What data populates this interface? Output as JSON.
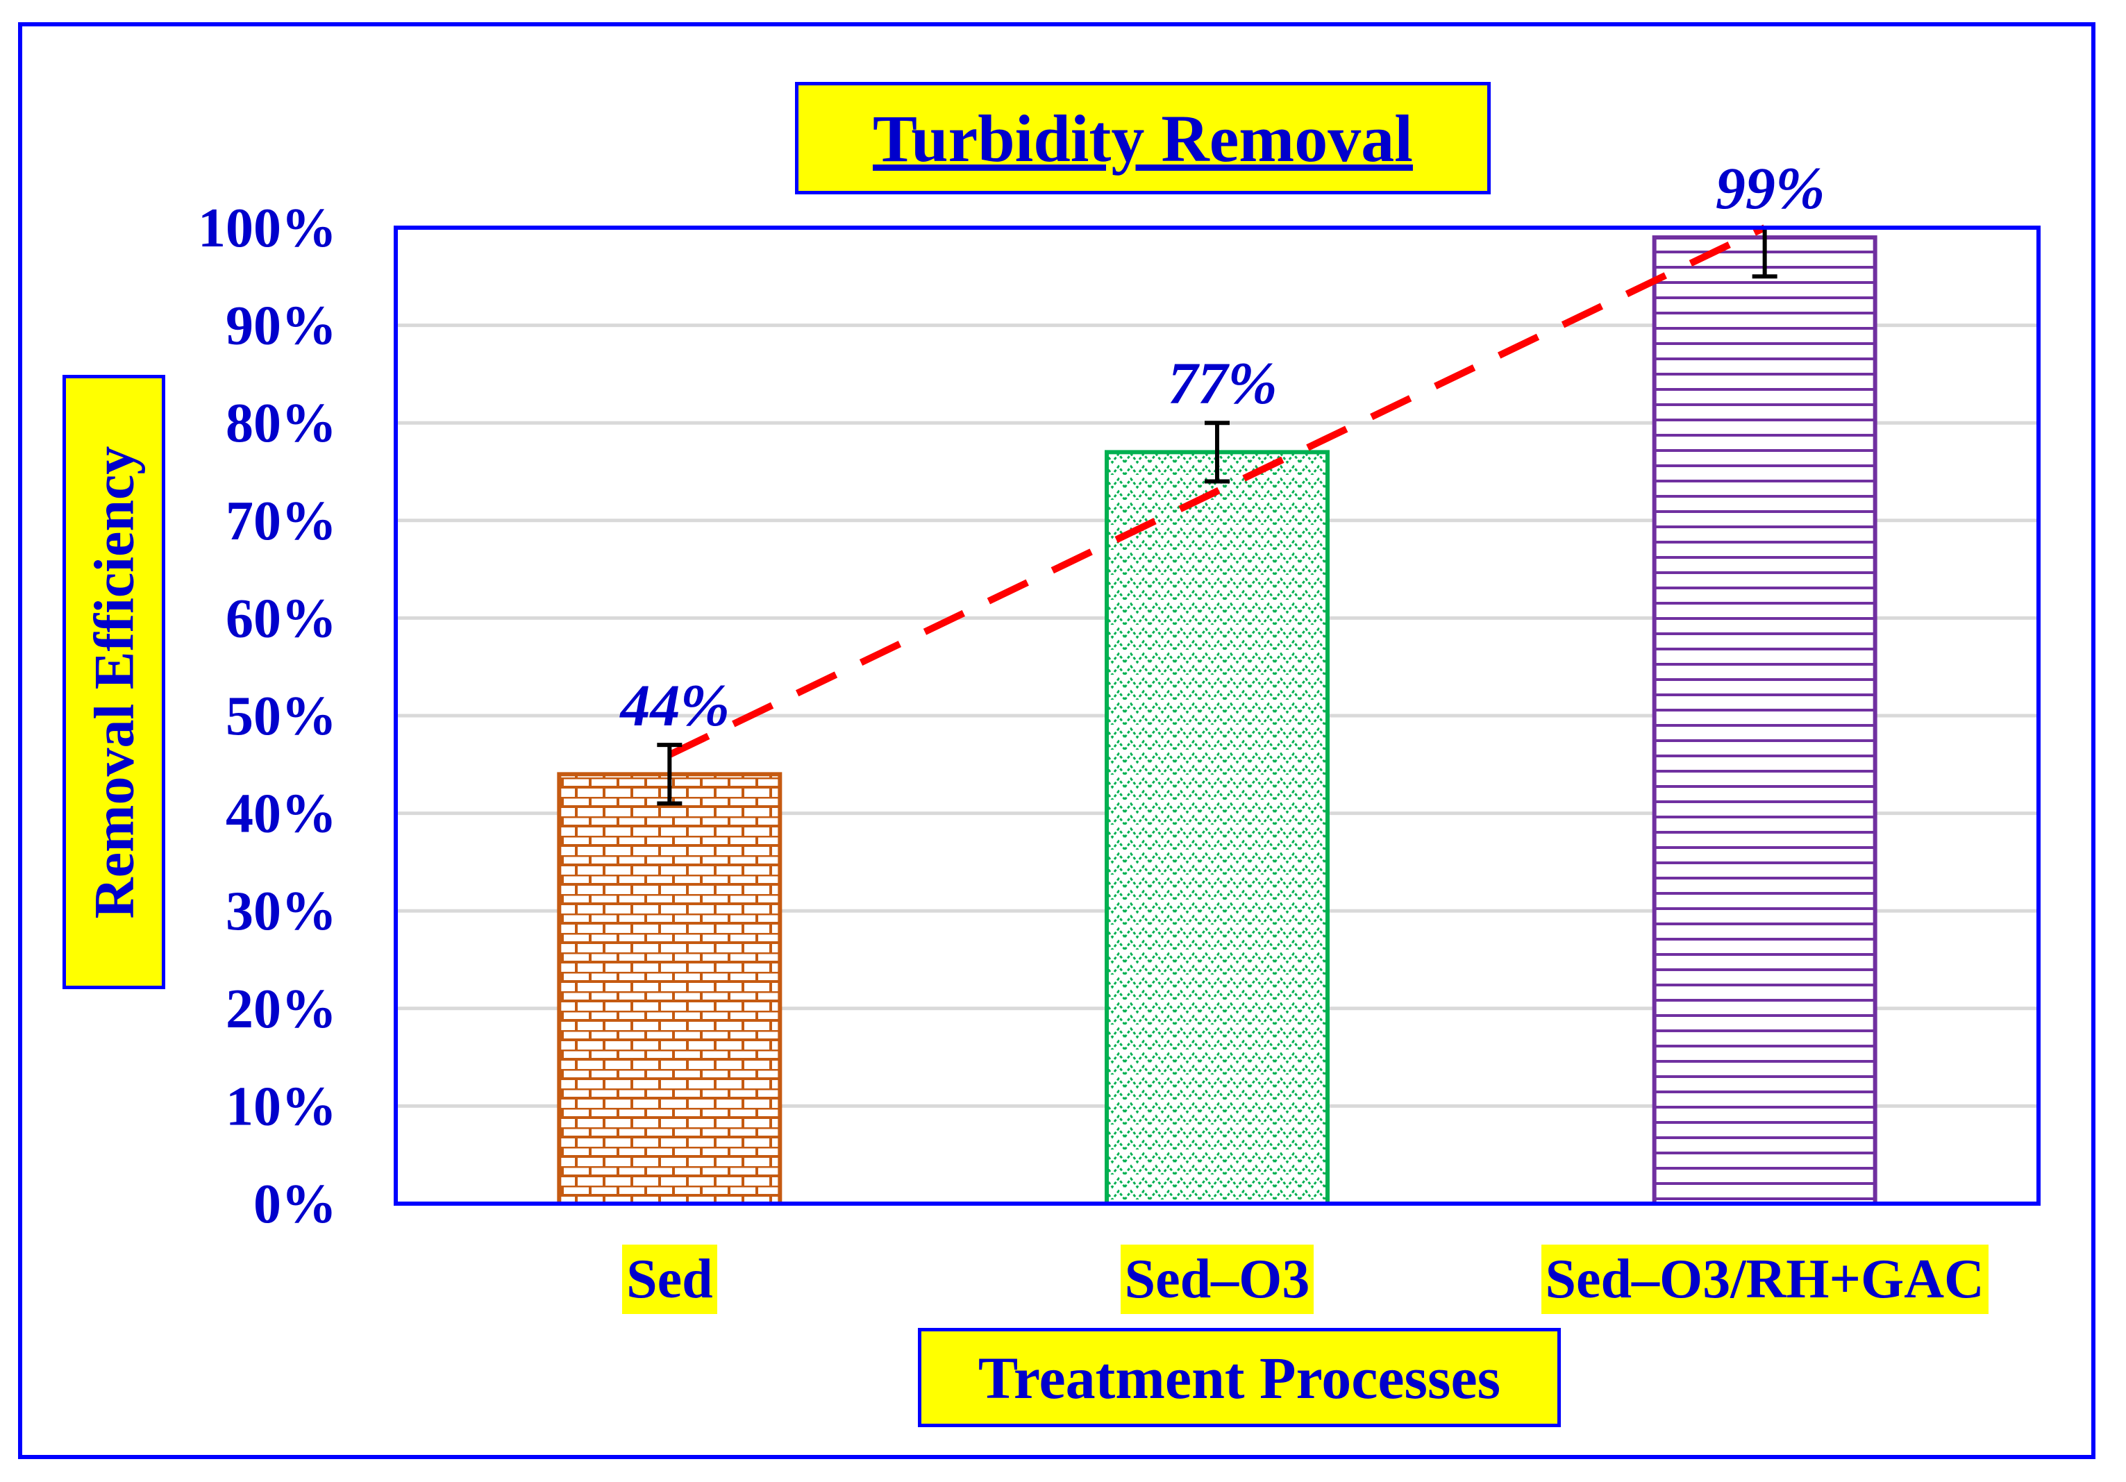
{
  "chart_data": {
    "type": "bar",
    "title": "Turbidity Removal",
    "xlabel": "Treatment Processes",
    "ylabel": "Removal Efficiency",
    "categories": [
      "Sed",
      "Sed–O3",
      "Sed–O3/RH+GAC"
    ],
    "values": [
      44,
      77,
      99
    ],
    "data_labels": [
      "44%",
      "77%",
      "99%"
    ],
    "error_bars": [
      {
        "low": 41,
        "high": 47
      },
      {
        "low": 74,
        "high": 80
      },
      {
        "low": 95,
        "high": 100
      }
    ],
    "trendline": {
      "style": "dashed",
      "color": "#ff0000",
      "from": 46,
      "to": 100
    },
    "ylim": [
      0,
      100
    ],
    "yticks": [
      "0%",
      "10%",
      "20%",
      "30%",
      "40%",
      "50%",
      "60%",
      "70%",
      "80%",
      "90%",
      "100%"
    ],
    "grid": true,
    "bar_styles": [
      {
        "color": "#c55a11",
        "pattern": "brick"
      },
      {
        "color": "#00b050",
        "pattern": "zigzag"
      },
      {
        "color": "#7030a0",
        "pattern": "horizontal-lines"
      }
    ],
    "colors": {
      "text": "#0000cc",
      "frame": "#0000ff",
      "label_bg": "#ffff00",
      "grid": "#d9d9d9"
    }
  }
}
